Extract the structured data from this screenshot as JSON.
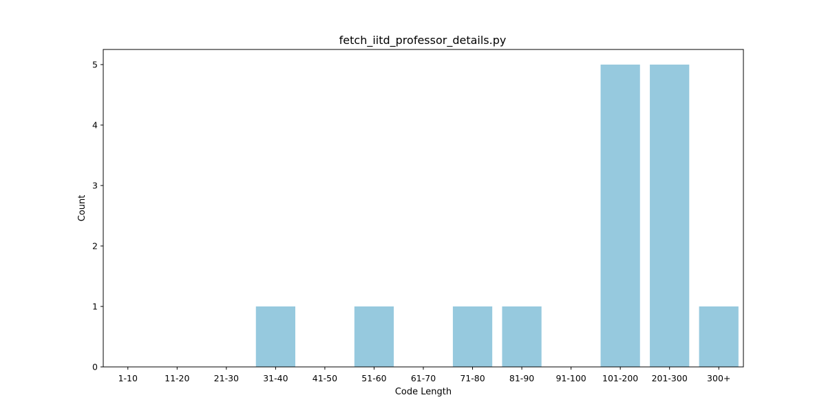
{
  "chart_data": {
    "type": "bar",
    "title": "fetch_iitd_professor_details.py",
    "xlabel": "Code Length",
    "ylabel": "Count",
    "categories": [
      "1-10",
      "11-20",
      "21-30",
      "31-40",
      "41-50",
      "51-60",
      "61-70",
      "71-80",
      "81-90",
      "91-100",
      "101-200",
      "201-300",
      "300+"
    ],
    "values": [
      0,
      0,
      0,
      1,
      0,
      1,
      0,
      1,
      1,
      0,
      5,
      5,
      1
    ],
    "ylim": [
      0,
      5.25
    ],
    "yticks": [
      0,
      1,
      2,
      3,
      4,
      5
    ],
    "bar_color": "#96c9de",
    "grid": false,
    "legend": "none"
  }
}
